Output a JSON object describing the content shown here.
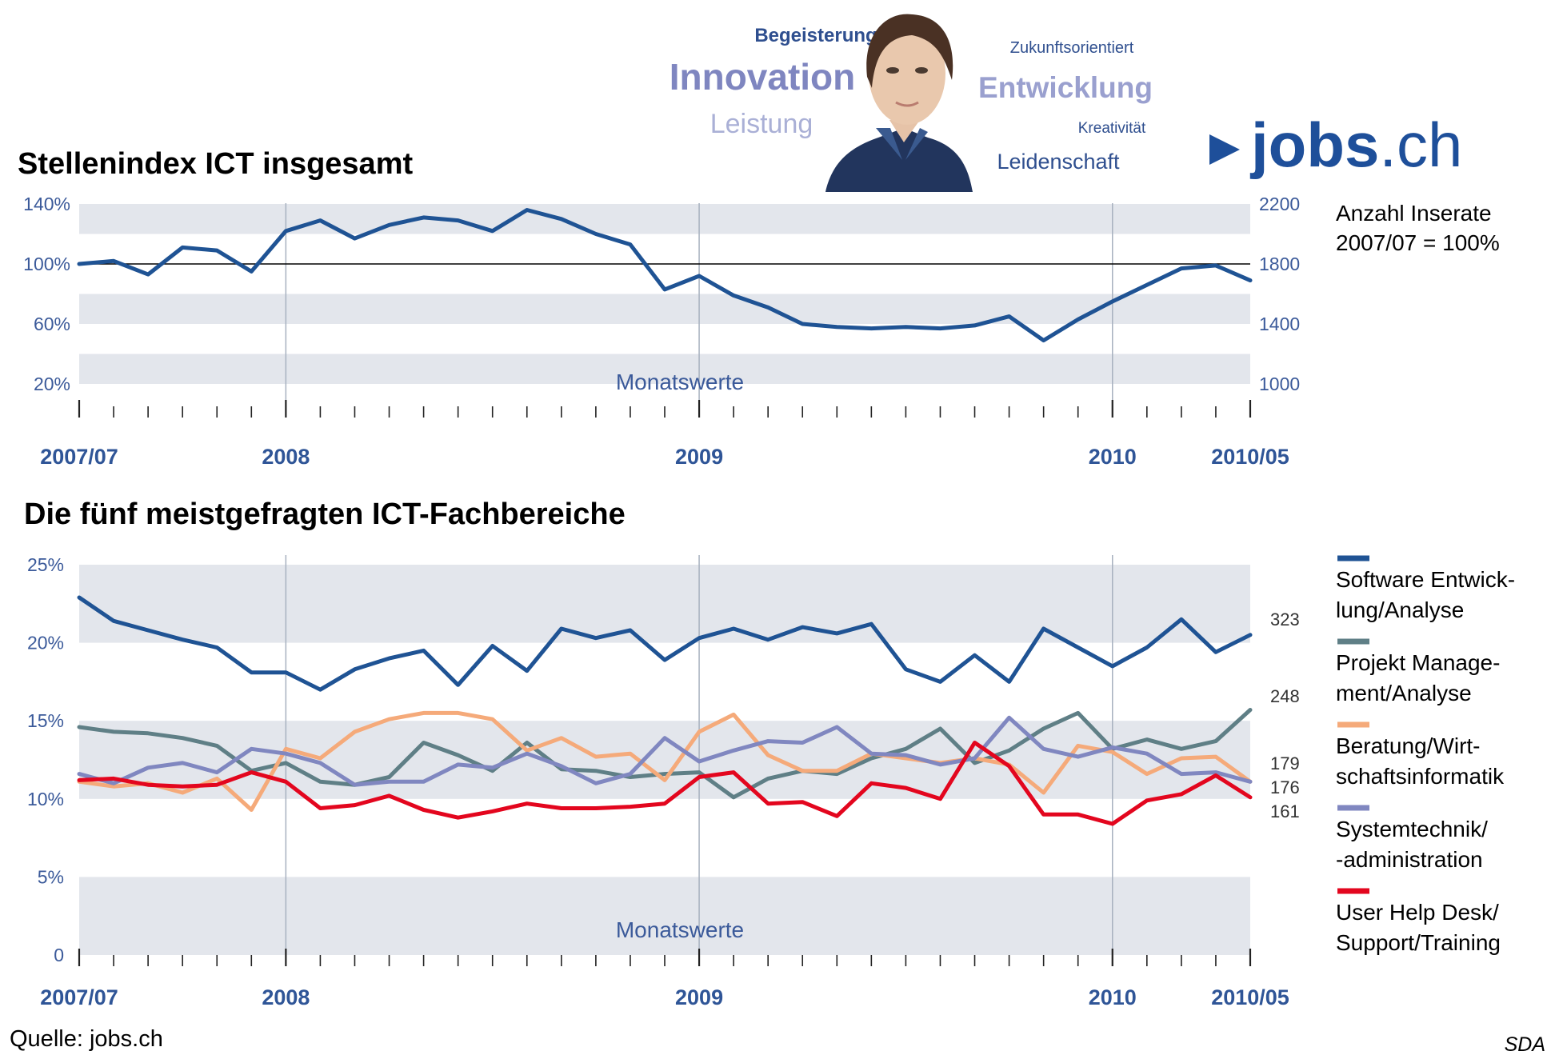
{
  "header": {
    "words": [
      {
        "text": "Begeisterung",
        "color": "#2f4f8f"
      },
      {
        "text": "Innovation",
        "color": "#7f86c0"
      },
      {
        "text": "Leistung",
        "color": "#aab0d6"
      },
      {
        "text": "Zukunftsorientiert",
        "color": "#2f4f8f"
      },
      {
        "text": "Entwicklung",
        "color": "#9aa0cf"
      },
      {
        "text": "Kreativität",
        "color": "#2f4f8f"
      },
      {
        "text": "Leidenschaft",
        "color": "#2f4f8f"
      }
    ],
    "brand_main": "jobs",
    "brand_tld": ".ch",
    "brand_color": "#1e4f9a"
  },
  "source": "Quelle: jobs.ch",
  "agency": "SDA",
  "chart_data": [
    {
      "type": "line",
      "title": "Stellenindex ICT insgesamt",
      "note": "Monatswerte",
      "side_label": [
        "Anzahl Inserate",
        "2007/07 = 100%"
      ],
      "y_ticks_left": [
        "140%",
        "100%",
        "60%",
        "20%"
      ],
      "y_ticks_right": [
        "2200",
        "1800",
        "1400",
        "1000"
      ],
      "ylim": [
        0,
        140
      ],
      "reference_line": 100,
      "x_labels": [
        "2007/07",
        "2008",
        "2009",
        "2010",
        "2010/05"
      ],
      "x": [
        "2007/07",
        "2007/08",
        "2007/09",
        "2007/10",
        "2007/11",
        "2007/12",
        "2008/01",
        "2008/02",
        "2008/03",
        "2008/04",
        "2008/05",
        "2008/06",
        "2008/07",
        "2008/08",
        "2008/09",
        "2008/10",
        "2008/11",
        "2008/12",
        "2009/01",
        "2009/02",
        "2009/03",
        "2009/04",
        "2009/05",
        "2009/06",
        "2009/07",
        "2009/08",
        "2009/09",
        "2009/10",
        "2009/11",
        "2009/12",
        "2010/01",
        "2010/02",
        "2010/03",
        "2010/04",
        "2010/05"
      ],
      "series": [
        {
          "color": "#1f5394",
          "values": [
            100,
            102,
            93,
            111,
            109,
            95,
            122,
            129,
            117,
            126,
            131,
            129,
            122,
            136,
            130,
            120,
            113,
            83,
            92,
            79,
            71,
            60,
            58,
            57,
            58,
            57,
            59,
            65,
            49,
            63,
            75,
            86,
            97,
            99,
            89
          ]
        }
      ]
    },
    {
      "type": "line",
      "title": "Die fünf meistgefragten ICT-Fachbereiche",
      "note": "Monatswerte",
      "y_ticks": [
        "25%",
        "20%",
        "15%",
        "10%",
        "5%",
        "0"
      ],
      "ylim": [
        0,
        25
      ],
      "x_labels": [
        "2007/07",
        "2008",
        "2009",
        "2010",
        "2010/05"
      ],
      "end_labels": [
        "323",
        "248",
        "179",
        "176",
        "161"
      ],
      "series": [
        {
          "name": "Software Entwick-\nlung/Analyse",
          "color": "#1f5394",
          "values": [
            22.9,
            21.4,
            20.8,
            20.2,
            19.7,
            18.1,
            18.1,
            17.0,
            18.3,
            19.0,
            19.5,
            17.3,
            19.8,
            18.2,
            20.9,
            20.3,
            20.8,
            18.9,
            20.3,
            20.9,
            20.2,
            21.0,
            20.6,
            21.2,
            18.3,
            17.5,
            19.2,
            17.5,
            20.9,
            19.7,
            18.5,
            19.7,
            21.5,
            19.4,
            20.5
          ]
        },
        {
          "name": "Projekt Manage-\nment/Analyse",
          "color": "#5f7f86",
          "values": [
            14.6,
            14.3,
            14.2,
            13.9,
            13.4,
            11.8,
            12.3,
            11.1,
            10.9,
            11.4,
            13.6,
            12.8,
            11.8,
            13.6,
            11.9,
            11.8,
            11.4,
            11.6,
            11.7,
            10.1,
            11.3,
            11.8,
            11.6,
            12.6,
            13.2,
            14.5,
            12.3,
            13.1,
            14.5,
            15.5,
            13.2,
            13.8,
            13.2,
            13.7,
            15.7
          ]
        },
        {
          "name": "Beratung/Wirt-\nschaftsinformatik",
          "color": "#f5aa7a",
          "values": [
            11.1,
            10.8,
            11.0,
            10.4,
            11.3,
            9.3,
            13.2,
            12.6,
            14.3,
            15.1,
            15.5,
            15.5,
            15.1,
            13.1,
            13.9,
            12.7,
            12.9,
            11.2,
            14.3,
            15.4,
            12.8,
            11.8,
            11.8,
            12.9,
            12.6,
            12.3,
            12.6,
            12.2,
            10.4,
            13.4,
            13.0,
            11.6,
            12.6,
            12.7,
            11.1
          ]
        },
        {
          "name": "Systemtechnik/\n-administration",
          "color": "#8087c0",
          "values": [
            11.6,
            11.0,
            12.0,
            12.3,
            11.7,
            13.2,
            12.9,
            12.3,
            10.9,
            11.1,
            11.1,
            12.2,
            12.0,
            12.9,
            12.1,
            11.0,
            11.6,
            13.9,
            12.4,
            13.1,
            13.7,
            13.6,
            14.6,
            12.9,
            12.8,
            12.2,
            12.6,
            15.2,
            13.2,
            12.7,
            13.3,
            12.9,
            11.6,
            11.7,
            11.1
          ]
        },
        {
          "name": "User Help Desk/\nSupport/Training",
          "color": "#e3061e",
          "values": [
            11.2,
            11.3,
            10.9,
            10.8,
            10.9,
            11.7,
            11.1,
            9.4,
            9.6,
            10.2,
            9.3,
            8.8,
            9.2,
            9.7,
            9.4,
            9.4,
            9.5,
            9.7,
            11.4,
            11.7,
            9.7,
            9.8,
            8.9,
            11.0,
            10.7,
            10.0,
            13.6,
            12.1,
            9.0,
            9.0,
            8.4,
            9.9,
            10.3,
            11.5,
            10.1
          ]
        }
      ]
    }
  ]
}
